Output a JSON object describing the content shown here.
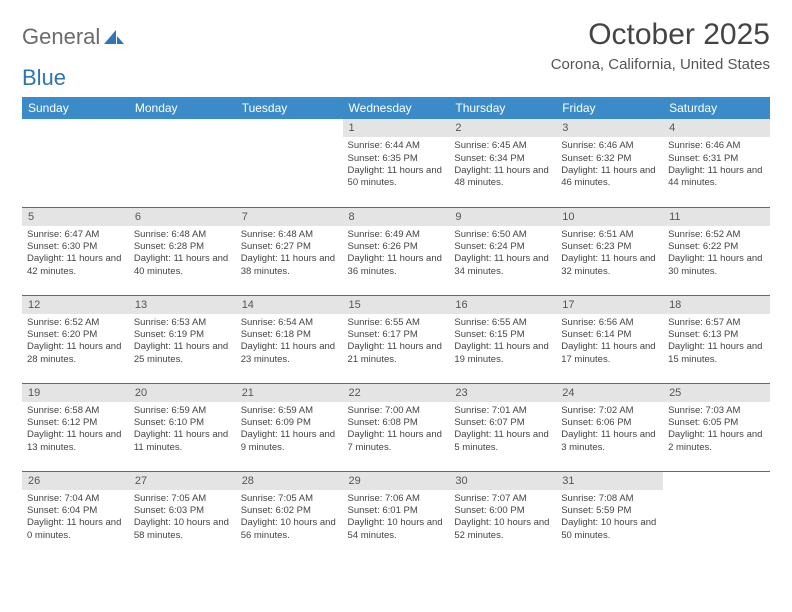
{
  "logo": {
    "text1": "General",
    "text2": "Blue"
  },
  "title": "October 2025",
  "location": "Corona, California, United States",
  "header_bg": "#3b8bc9",
  "daynum_bg": "#e4e4e4",
  "border_color": "#2e75b6",
  "columns": [
    "Sunday",
    "Monday",
    "Tuesday",
    "Wednesday",
    "Thursday",
    "Friday",
    "Saturday"
  ],
  "weeks": [
    [
      null,
      null,
      null,
      {
        "n": "1",
        "sr": "6:44 AM",
        "ss": "6:35 PM",
        "dl": "11 hours and 50 minutes."
      },
      {
        "n": "2",
        "sr": "6:45 AM",
        "ss": "6:34 PM",
        "dl": "11 hours and 48 minutes."
      },
      {
        "n": "3",
        "sr": "6:46 AM",
        "ss": "6:32 PM",
        "dl": "11 hours and 46 minutes."
      },
      {
        "n": "4",
        "sr": "6:46 AM",
        "ss": "6:31 PM",
        "dl": "11 hours and 44 minutes."
      }
    ],
    [
      {
        "n": "5",
        "sr": "6:47 AM",
        "ss": "6:30 PM",
        "dl": "11 hours and 42 minutes."
      },
      {
        "n": "6",
        "sr": "6:48 AM",
        "ss": "6:28 PM",
        "dl": "11 hours and 40 minutes."
      },
      {
        "n": "7",
        "sr": "6:48 AM",
        "ss": "6:27 PM",
        "dl": "11 hours and 38 minutes."
      },
      {
        "n": "8",
        "sr": "6:49 AM",
        "ss": "6:26 PM",
        "dl": "11 hours and 36 minutes."
      },
      {
        "n": "9",
        "sr": "6:50 AM",
        "ss": "6:24 PM",
        "dl": "11 hours and 34 minutes."
      },
      {
        "n": "10",
        "sr": "6:51 AM",
        "ss": "6:23 PM",
        "dl": "11 hours and 32 minutes."
      },
      {
        "n": "11",
        "sr": "6:52 AM",
        "ss": "6:22 PM",
        "dl": "11 hours and 30 minutes."
      }
    ],
    [
      {
        "n": "12",
        "sr": "6:52 AM",
        "ss": "6:20 PM",
        "dl": "11 hours and 28 minutes."
      },
      {
        "n": "13",
        "sr": "6:53 AM",
        "ss": "6:19 PM",
        "dl": "11 hours and 25 minutes."
      },
      {
        "n": "14",
        "sr": "6:54 AM",
        "ss": "6:18 PM",
        "dl": "11 hours and 23 minutes."
      },
      {
        "n": "15",
        "sr": "6:55 AM",
        "ss": "6:17 PM",
        "dl": "11 hours and 21 minutes."
      },
      {
        "n": "16",
        "sr": "6:55 AM",
        "ss": "6:15 PM",
        "dl": "11 hours and 19 minutes."
      },
      {
        "n": "17",
        "sr": "6:56 AM",
        "ss": "6:14 PM",
        "dl": "11 hours and 17 minutes."
      },
      {
        "n": "18",
        "sr": "6:57 AM",
        "ss": "6:13 PM",
        "dl": "11 hours and 15 minutes."
      }
    ],
    [
      {
        "n": "19",
        "sr": "6:58 AM",
        "ss": "6:12 PM",
        "dl": "11 hours and 13 minutes."
      },
      {
        "n": "20",
        "sr": "6:59 AM",
        "ss": "6:10 PM",
        "dl": "11 hours and 11 minutes."
      },
      {
        "n": "21",
        "sr": "6:59 AM",
        "ss": "6:09 PM",
        "dl": "11 hours and 9 minutes."
      },
      {
        "n": "22",
        "sr": "7:00 AM",
        "ss": "6:08 PM",
        "dl": "11 hours and 7 minutes."
      },
      {
        "n": "23",
        "sr": "7:01 AM",
        "ss": "6:07 PM",
        "dl": "11 hours and 5 minutes."
      },
      {
        "n": "24",
        "sr": "7:02 AM",
        "ss": "6:06 PM",
        "dl": "11 hours and 3 minutes."
      },
      {
        "n": "25",
        "sr": "7:03 AM",
        "ss": "6:05 PM",
        "dl": "11 hours and 2 minutes."
      }
    ],
    [
      {
        "n": "26",
        "sr": "7:04 AM",
        "ss": "6:04 PM",
        "dl": "11 hours and 0 minutes."
      },
      {
        "n": "27",
        "sr": "7:05 AM",
        "ss": "6:03 PM",
        "dl": "10 hours and 58 minutes."
      },
      {
        "n": "28",
        "sr": "7:05 AM",
        "ss": "6:02 PM",
        "dl": "10 hours and 56 minutes."
      },
      {
        "n": "29",
        "sr": "7:06 AM",
        "ss": "6:01 PM",
        "dl": "10 hours and 54 minutes."
      },
      {
        "n": "30",
        "sr": "7:07 AM",
        "ss": "6:00 PM",
        "dl": "10 hours and 52 minutes."
      },
      {
        "n": "31",
        "sr": "7:08 AM",
        "ss": "5:59 PM",
        "dl": "10 hours and 50 minutes."
      },
      null
    ]
  ],
  "labels": {
    "sunrise": "Sunrise:",
    "sunset": "Sunset:",
    "daylight": "Daylight:"
  }
}
